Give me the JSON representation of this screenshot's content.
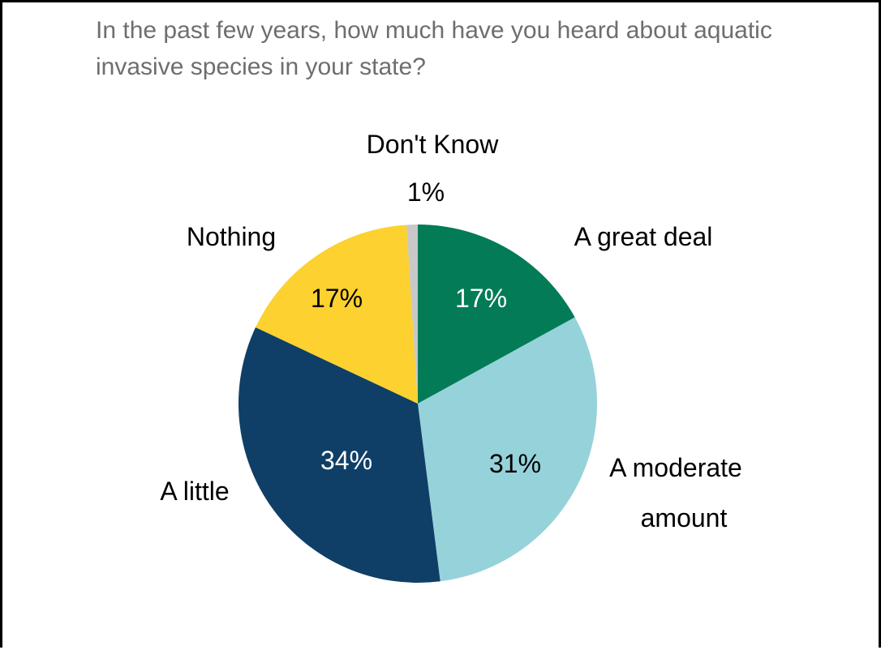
{
  "title": "In the past few years, how much have you heard about aquatic invasive species in your state?",
  "chart_data": {
    "type": "pie",
    "title": "In the past few years, how much have you heard about aquatic invasive species in your state?",
    "slices": [
      {
        "label": "A great deal",
        "value": 17,
        "value_label": "17%",
        "color": "#027B56",
        "text_color": "#ffffff"
      },
      {
        "label": "A moderate amount",
        "value": 31,
        "value_label": "31%",
        "color": "#96D2DA",
        "text_color": "#000000"
      },
      {
        "label": "A little",
        "value": 34,
        "value_label": "34%",
        "color": "#0F3F66",
        "text_color": "#ffffff"
      },
      {
        "label": "Nothing",
        "value": 17,
        "value_label": "17%",
        "color": "#FCD130",
        "text_color": "#000000"
      },
      {
        "label": "Don't Know",
        "value": 1,
        "value_label": "1%",
        "color": "#C8C8C8",
        "text_color": "#000000"
      }
    ],
    "start": "12 o'clock",
    "direction": "clockwise"
  }
}
